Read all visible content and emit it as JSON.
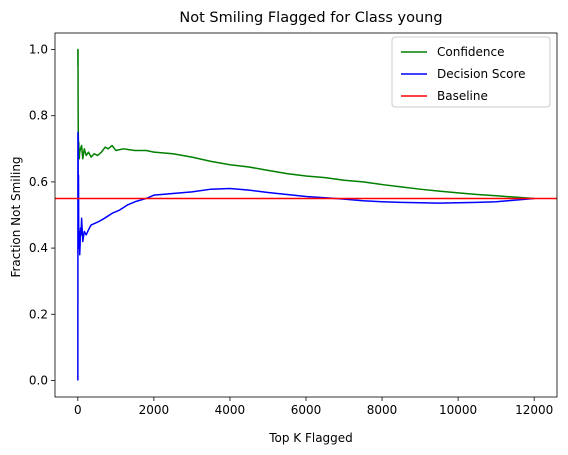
{
  "chart_data": {
    "type": "line",
    "title": "Not Smiling Flagged for Class young",
    "xlabel": "Top K Flagged",
    "ylabel": "Fraction Not Smiling",
    "xlim": [
      -600,
      12600
    ],
    "ylim": [
      -0.05,
      1.05
    ],
    "xticks": [
      0,
      2000,
      4000,
      6000,
      8000,
      10000,
      12000
    ],
    "xtick_labels": [
      "0",
      "2000",
      "4000",
      "6000",
      "8000",
      "10000",
      "12000"
    ],
    "yticks": [
      0.0,
      0.2,
      0.4,
      0.6,
      0.8,
      1.0
    ],
    "ytick_labels": [
      "0.0",
      "0.2",
      "0.4",
      "0.6",
      "0.8",
      "1.0"
    ],
    "grid": false,
    "legend_position": "top-right",
    "series": [
      {
        "name": "Confidence",
        "color": "#008000",
        "x": [
          1,
          3,
          5,
          8,
          12,
          18,
          25,
          35,
          50,
          70,
          100,
          130,
          170,
          220,
          280,
          350,
          430,
          520,
          620,
          720,
          800,
          900,
          1000,
          1200,
          1500,
          1800,
          2000,
          2500,
          3000,
          3500,
          4000,
          4500,
          5000,
          5500,
          6000,
          6500,
          7000,
          7500,
          8000,
          8500,
          9000,
          9500,
          10000,
          10500,
          11000,
          11500,
          12000
        ],
        "y": [
          1.0,
          0.95,
          1.0,
          0.82,
          0.75,
          0.7,
          0.72,
          0.67,
          0.69,
          0.7,
          0.71,
          0.67,
          0.7,
          0.68,
          0.69,
          0.675,
          0.685,
          0.68,
          0.69,
          0.705,
          0.7,
          0.71,
          0.695,
          0.7,
          0.695,
          0.695,
          0.69,
          0.685,
          0.675,
          0.662,
          0.652,
          0.645,
          0.635,
          0.625,
          0.618,
          0.613,
          0.605,
          0.6,
          0.592,
          0.585,
          0.578,
          0.572,
          0.567,
          0.562,
          0.558,
          0.554,
          0.55
        ]
      },
      {
        "name": "Decision Score",
        "color": "#0000ff",
        "x": [
          1,
          3,
          5,
          8,
          12,
          18,
          25,
          35,
          50,
          60,
          70,
          85,
          100,
          130,
          170,
          220,
          280,
          350,
          450,
          550,
          700,
          900,
          1100,
          1300,
          1500,
          1800,
          2000,
          2500,
          3000,
          3500,
          4000,
          4500,
          5000,
          5500,
          6000,
          6500,
          7000,
          7500,
          8000,
          8500,
          9000,
          9500,
          10000,
          10500,
          11000,
          11500,
          12000
        ],
        "y": [
          0.0,
          0.75,
          0.6,
          0.74,
          0.5,
          0.62,
          0.4,
          0.45,
          0.38,
          0.41,
          0.46,
          0.44,
          0.49,
          0.42,
          0.45,
          0.44,
          0.455,
          0.47,
          0.475,
          0.48,
          0.49,
          0.505,
          0.515,
          0.53,
          0.54,
          0.55,
          0.56,
          0.565,
          0.57,
          0.578,
          0.58,
          0.575,
          0.568,
          0.562,
          0.556,
          0.552,
          0.548,
          0.543,
          0.54,
          0.538,
          0.537,
          0.536,
          0.537,
          0.538,
          0.54,
          0.545,
          0.55
        ]
      },
      {
        "name": "Baseline",
        "color": "#ff0000",
        "x": [
          -600,
          12600
        ],
        "y": [
          0.55,
          0.55
        ]
      }
    ]
  }
}
